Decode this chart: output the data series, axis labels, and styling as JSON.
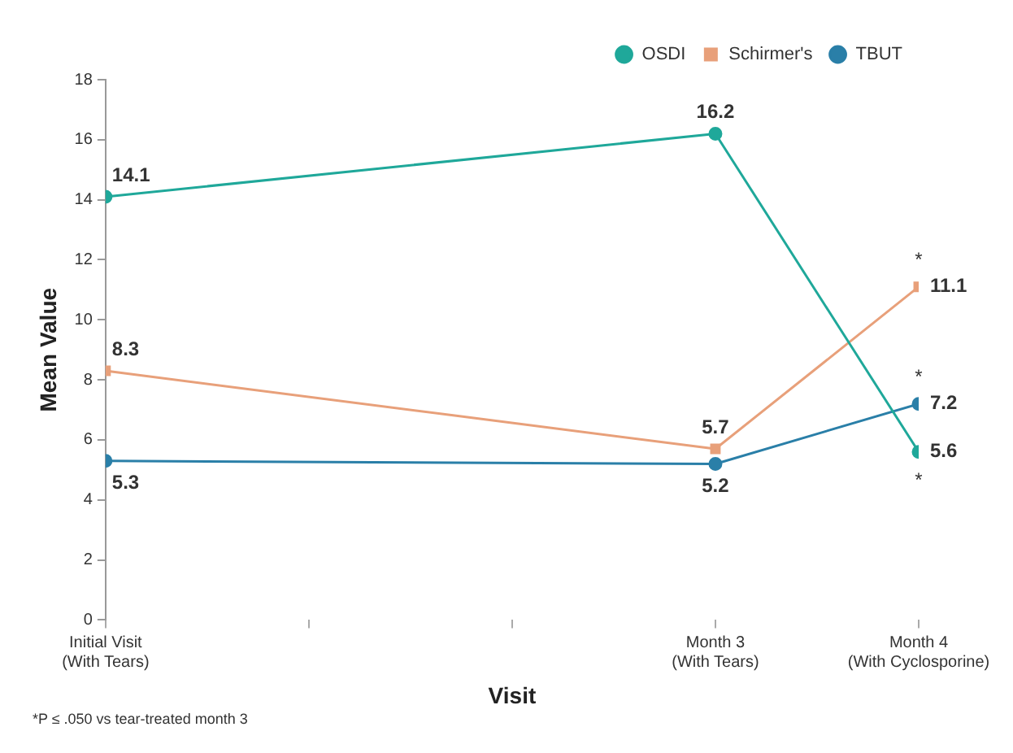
{
  "chart_data": {
    "type": "line",
    "xlabel": "Visit",
    "ylabel": "Mean Value",
    "categories": [
      "Initial Visit\n(With Tears)",
      null,
      null,
      "Month 3\n(With Tears)",
      "Month 4\n(With Cyclosporine)"
    ],
    "ylim": [
      0,
      18
    ],
    "yticks": [
      0,
      2,
      4,
      6,
      8,
      10,
      12,
      14,
      16,
      18
    ],
    "series": [
      {
        "name": "OSDI",
        "color": "#1fa89a",
        "marker": "circle",
        "values": [
          14.1,
          null,
          null,
          16.2,
          5.6
        ]
      },
      {
        "name": "Schirmer's",
        "color": "#e8a07a",
        "marker": "square",
        "values": [
          8.3,
          null,
          null,
          5.7,
          11.1
        ]
      },
      {
        "name": "TBUT",
        "color": "#2a7fa8",
        "marker": "circle",
        "values": [
          5.3,
          null,
          null,
          5.2,
          7.2
        ]
      }
    ],
    "data_labels": true,
    "grid": false,
    "legend": "top right",
    "annotations": [
      {
        "text": "*",
        "x": "Month 4\n(With Cyclosporine)",
        "y": 11.1
      },
      {
        "text": "*",
        "x": "Month 4\n(With Cyclosporine)",
        "y": 7.2
      },
      {
        "text": "*",
        "x": "Month 4\n(With Cyclosporine)",
        "y": 5.6
      },
      "*P ≤ .050 vs tear-treated month 3"
    ]
  }
}
